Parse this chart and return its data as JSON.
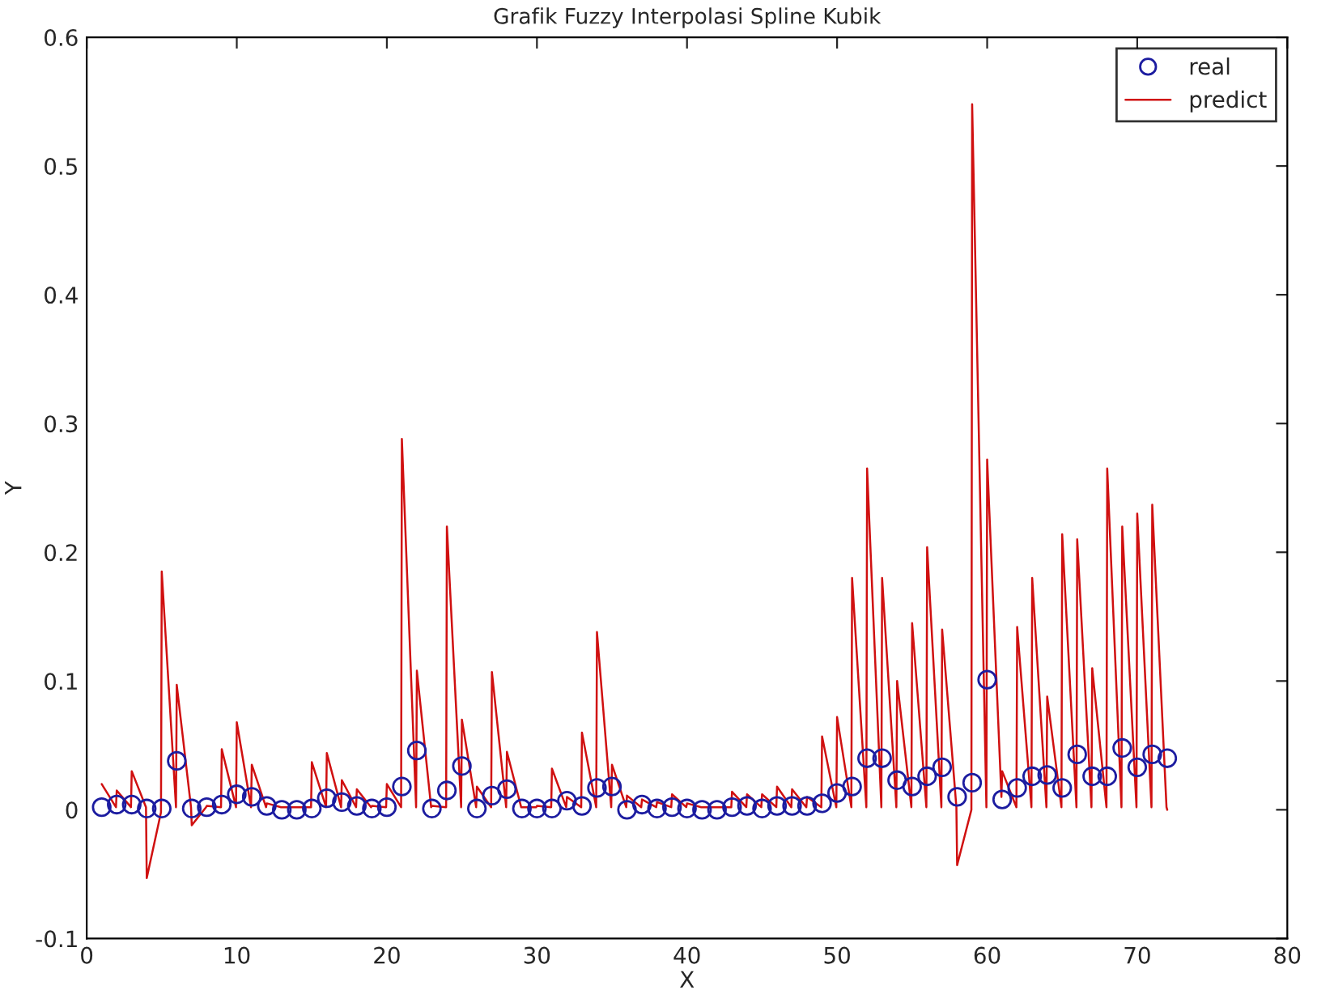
{
  "chart_data": {
    "type": "scatter",
    "title": "Grafik Fuzzy Interpolasi Spline Kubik",
    "xlabel": "X",
    "ylabel": "Y",
    "xlim": [
      0,
      80
    ],
    "xticks": [
      0,
      10,
      20,
      30,
      40,
      50,
      60,
      70,
      80
    ],
    "ylim": [
      -0.1,
      0.6
    ],
    "yticks": [
      {
        "value": -0.1,
        "label": "-0.1"
      },
      0,
      0.1,
      0.2,
      0.3,
      0.4,
      0.5,
      0.6
    ],
    "grid": false,
    "legend": "top right",
    "series": [
      {
        "name": "real",
        "marker": "circle",
        "color": "#1c1ca0",
        "x": [
          1,
          2,
          3,
          4,
          5,
          6,
          7,
          8,
          9,
          10,
          11,
          12,
          13,
          14,
          15,
          16,
          17,
          18,
          19,
          20,
          21,
          22,
          23,
          24,
          25,
          26,
          27,
          28,
          29,
          30,
          31,
          32,
          33,
          34,
          35,
          36,
          37,
          38,
          39,
          40,
          41,
          42,
          43,
          44,
          45,
          46,
          47,
          48,
          49,
          50,
          51,
          52,
          53,
          54,
          55,
          56,
          57,
          58,
          59,
          60,
          61,
          62,
          63,
          64,
          65,
          66,
          67,
          68,
          69,
          70,
          71,
          72
        ],
        "values": [
          0.002,
          0.004,
          0.004,
          0.001,
          0.001,
          0.038,
          0.001,
          0.002,
          0.004,
          0.012,
          0.01,
          0.003,
          0,
          0,
          0.001,
          0.009,
          0.006,
          0.003,
          0.001,
          0.002,
          0.018,
          0.046,
          0.001,
          0.015,
          0.034,
          0.001,
          0.011,
          0.016,
          0.001,
          0.001,
          0.001,
          0.007,
          0.003,
          0.017,
          0.018,
          0,
          0.004,
          0.001,
          0.002,
          0.001,
          0,
          0,
          0.002,
          0.003,
          0.001,
          0.003,
          0.003,
          0.003,
          0.005,
          0.013,
          0.018,
          0.04,
          0.04,
          0.023,
          0.018,
          0.026,
          0.033,
          0.01,
          0.021,
          0.101,
          0.008,
          0.017,
          0.026,
          0.027,
          0.017,
          0.043,
          0.026,
          0.026,
          0.048,
          0.033,
          0.043,
          0.04
        ]
      },
      {
        "name": "predict",
        "type": "line",
        "marker": "none",
        "line_style": "solid",
        "color": "#d01010",
        "x": [
          1,
          1.95,
          2,
          2.95,
          3,
          3.95,
          4,
          4.95,
          5,
          5.95,
          6,
          6.95,
          7,
          7.95,
          8,
          8.95,
          9,
          9.95,
          10,
          10.95,
          11,
          11.95,
          12,
          12.95,
          13,
          13.95,
          14,
          14.95,
          15,
          15.95,
          16,
          16.95,
          17,
          17.95,
          18,
          18.95,
          19,
          19.95,
          20,
          20.95,
          21,
          21.95,
          22,
          22.95,
          23,
          23.95,
          24,
          24.95,
          25,
          25.95,
          26,
          26.95,
          27,
          27.95,
          28,
          28.95,
          29,
          29.95,
          30,
          30.95,
          31,
          31.95,
          32,
          32.95,
          33,
          33.95,
          34,
          34.95,
          35,
          35.95,
          36,
          36.95,
          37,
          37.95,
          38,
          38.95,
          39,
          39.95,
          40,
          40.95,
          41,
          41.95,
          42,
          42.95,
          43,
          43.95,
          44,
          44.95,
          45,
          45.95,
          46,
          46.95,
          47,
          47.95,
          48,
          48.95,
          49,
          49.95,
          50,
          50.95,
          51,
          51.95,
          52,
          52.95,
          53,
          53.95,
          54,
          54.95,
          55,
          55.95,
          56,
          56.95,
          57,
          57.95,
          58,
          58.95,
          59,
          59.95,
          60,
          60.95,
          61,
          61.95,
          62,
          62.95,
          63,
          63.95,
          64,
          64.95,
          65,
          65.95,
          66,
          66.95,
          67,
          67.95,
          68,
          68.95,
          69,
          69.95,
          70,
          70.95,
          71,
          71.95,
          72
        ],
        "values": [
          0.02,
          0.002,
          0.015,
          0.002,
          0.03,
          0.002,
          -0.053,
          -0.002,
          0.185,
          0.002,
          0.097,
          0.002,
          -0.012,
          0.002,
          0.003,
          0.002,
          0.047,
          0.002,
          0.068,
          0.002,
          0.035,
          0.002,
          0.005,
          0.002,
          0.002,
          0.002,
          0.002,
          0.002,
          0.037,
          0.002,
          0.044,
          0.002,
          0.023,
          0.002,
          0.016,
          0.002,
          0.003,
          0.002,
          0.02,
          0.002,
          0.288,
          0.002,
          0.108,
          0.002,
          0.003,
          0.002,
          0.22,
          0.002,
          0.07,
          0.002,
          0.018,
          0.002,
          0.107,
          0.002,
          0.045,
          0.002,
          0.002,
          0.002,
          0.003,
          0.002,
          0.032,
          0.002,
          0.01,
          0.002,
          0.06,
          0.002,
          0.138,
          0.002,
          0.035,
          0.002,
          0.011,
          0.002,
          0.008,
          0.002,
          0.006,
          0.002,
          0.012,
          0.002,
          0.005,
          0.002,
          0.002,
          0.002,
          0.002,
          0.002,
          0.014,
          0.002,
          0.012,
          0.002,
          0.012,
          0.002,
          0.018,
          0.002,
          0.016,
          0.002,
          0.01,
          0.002,
          0.057,
          0.002,
          0.072,
          0.002,
          0.18,
          0.002,
          0.265,
          0.002,
          0.18,
          0.002,
          0.1,
          0.002,
          0.145,
          0.002,
          0.204,
          0.002,
          0.14,
          0.002,
          -0.043,
          0.0,
          0.548,
          0.002,
          0.272,
          0.01,
          0.03,
          0.002,
          0.142,
          0.002,
          0.18,
          0.002,
          0.088,
          0.002,
          0.214,
          0.002,
          0.21,
          0.002,
          0.11,
          0.002,
          0.265,
          0.002,
          0.22,
          0.002,
          0.23,
          0.002,
          0.237,
          0.002,
          0.0
        ]
      }
    ]
  }
}
